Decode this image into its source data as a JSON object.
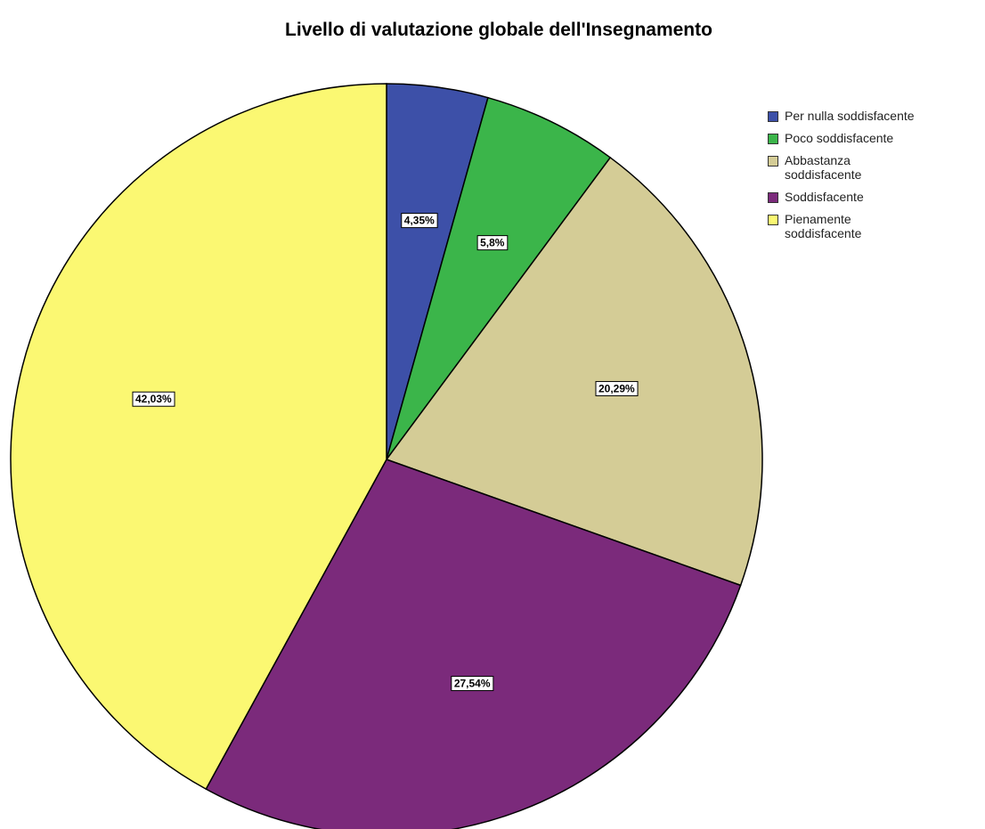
{
  "chart_data": {
    "type": "pie",
    "title": "Livello di valutazione globale dell'Insegnamento",
    "categories": [
      "Per nulla soddisfacente",
      "Poco soddisfacente",
      "Abbastanza soddisfacente",
      "Soddisfacente",
      "Pienamente soddisfacente"
    ],
    "values": [
      4.35,
      5.8,
      20.29,
      27.54,
      42.03
    ],
    "value_labels": [
      "4,35%",
      "5,8%",
      "20,29%",
      "27,54%",
      "42,03%"
    ],
    "colors": [
      "#3d50a8",
      "#3bb54a",
      "#d4cc96",
      "#7b2a7b",
      "#fbf872"
    ]
  }
}
